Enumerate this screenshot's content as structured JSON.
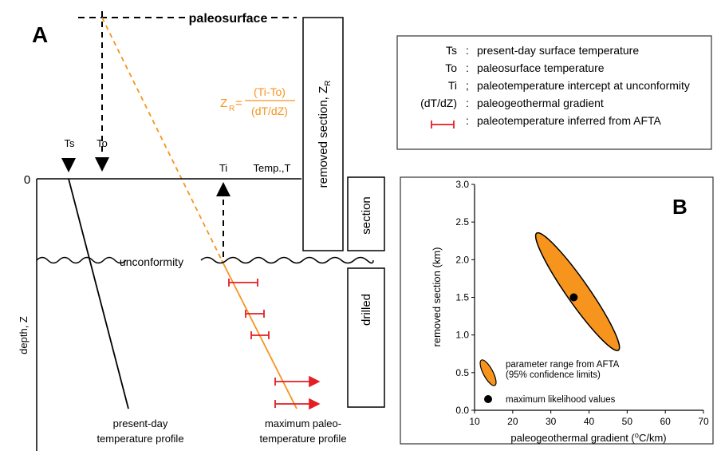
{
  "panel_a": {
    "label": "A",
    "paleosurface": "paleosurface",
    "ts": "Ts",
    "to": "To",
    "ti": "Ti",
    "temp_axis": "Temp.,T",
    "zero": "0",
    "depth_axis": "depth, Z",
    "formula_lhs": "Z",
    "formula_sub": "R",
    "formula_eq": "=",
    "formula_num": "(Ti-To)",
    "formula_den": "(dT/dZ)",
    "removed_section": "removed section, Z",
    "removed_section_sub": "R",
    "section": "section",
    "drilled": "drilled",
    "unconformity": "unconformity",
    "present_profile_1": "present-day",
    "present_profile_2": "temperature profile",
    "paleo_profile_1": "maximum paleo-",
    "paleo_profile_2": "temperature profile"
  },
  "legend": {
    "entries": [
      {
        "sym": "Ts",
        "sep": ":",
        "text": "present-day surface temperature"
      },
      {
        "sym": "To",
        "sep": ":",
        "text": "paleosurface temperature"
      },
      {
        "sym": "Ti",
        "sep": ";",
        "text": "paleotemperature intercept at unconformity"
      },
      {
        "sym": "(dT/dZ)",
        "sep": ":",
        "text": "paleogeothermal gradient"
      },
      {
        "sym": "",
        "sep": ":",
        "text": "paleotemperature inferred from AFTA"
      }
    ],
    "red_color": "#e31e24",
    "orange_color": "#f7941d"
  },
  "panel_b": {
    "label": "B",
    "legend_range_1": "parameter range from AFTA",
    "legend_range_2": "(95% confidence limits)",
    "legend_ml": "maximum likelihood values"
  },
  "chart_data": {
    "type": "scatter",
    "xlabel": "paleogeothermal gradient (⁰C/km)",
    "ylabel": "removed section (km)",
    "xlim": [
      10,
      70
    ],
    "ylim": [
      0,
      3.0
    ],
    "x_ticks": [
      "10",
      "20",
      "30",
      "40",
      "50",
      "60",
      "70"
    ],
    "y_ticks": [
      "0.0",
      "0.5",
      "1.0",
      "1.5",
      "2.0",
      "2.5",
      "3.0"
    ],
    "grid": false,
    "series": [
      {
        "name": "maximum likelihood values",
        "x": [
          36
        ],
        "y": [
          1.5
        ]
      }
    ],
    "confidence_region": {
      "name": "parameter range from AFTA",
      "points": [
        [
          27,
          2.3
        ],
        [
          24,
          2.1
        ],
        [
          32,
          1.6
        ],
        [
          42,
          1.0
        ],
        [
          47,
          0.85
        ],
        [
          44,
          1.15
        ],
        [
          36,
          1.75
        ],
        [
          29,
          2.22
        ]
      ]
    }
  }
}
